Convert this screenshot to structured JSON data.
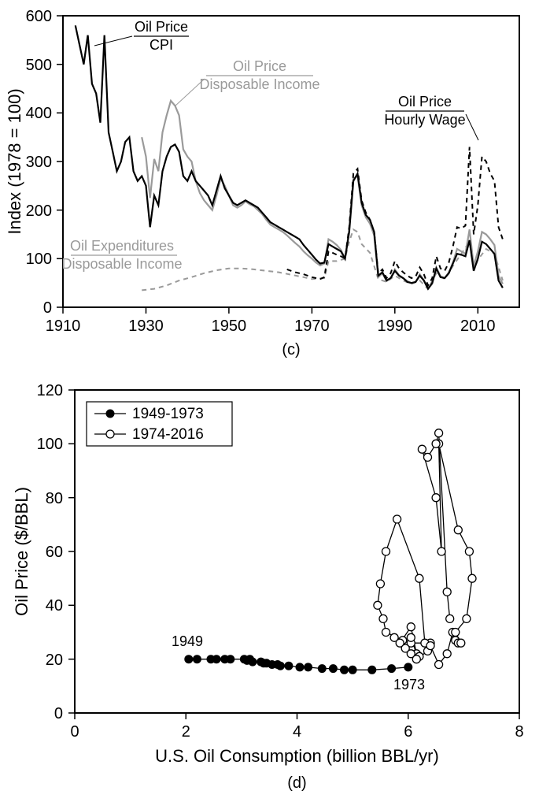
{
  "chart_c": {
    "type": "line",
    "subplot_label": "(c)",
    "ylabel": "Index (1978 = 100)",
    "xlim": [
      1910,
      2020
    ],
    "ylim": [
      0,
      600
    ],
    "xticks": [
      1910,
      1930,
      1950,
      1970,
      1990,
      2010
    ],
    "yticks": [
      0,
      100,
      200,
      300,
      400,
      500,
      600
    ],
    "label_fontsize": 20,
    "axis_title_fontsize": 22,
    "background_color": "#ffffff",
    "border_color": "#000000",
    "colors": {
      "black": "#000000",
      "gray": "#9a9a9a"
    },
    "annotations": {
      "cpi": {
        "top": "Oil Price",
        "bottom": "CPI",
        "color": "#000000"
      },
      "disp": {
        "top": "Oil Price",
        "bottom": "Disposable Income",
        "color": "#9a9a9a"
      },
      "wage": {
        "top": "Oil Price",
        "bottom": "Hourly Wage",
        "color": "#000000"
      },
      "exp": {
        "top": "Oil Expenditures",
        "bottom": "Disposable Income",
        "color": "#9a9a9a"
      }
    },
    "series": {
      "oil_cpi": {
        "color": "#000000",
        "dash": false,
        "x": [
          1913,
          1914,
          1915,
          1916,
          1917,
          1918,
          1919,
          1920,
          1921,
          1922,
          1923,
          1924,
          1925,
          1926,
          1927,
          1928,
          1929,
          1930,
          1931,
          1932,
          1933,
          1934,
          1935,
          1936,
          1937,
          1938,
          1939,
          1940,
          1941,
          1942,
          1943,
          1944,
          1945,
          1946,
          1947,
          1948,
          1949,
          1950,
          1951,
          1952,
          1953,
          1954,
          1955,
          1956,
          1957,
          1958,
          1959,
          1960,
          1961,
          1962,
          1963,
          1964,
          1965,
          1966,
          1967,
          1968,
          1969,
          1970,
          1971,
          1972,
          1973,
          1974,
          1975,
          1976,
          1977,
          1978,
          1979,
          1980,
          1981,
          1982,
          1983,
          1984,
          1985,
          1986,
          1987,
          1988,
          1989,
          1990,
          1991,
          1992,
          1993,
          1994,
          1995,
          1996,
          1997,
          1998,
          1999,
          2000,
          2001,
          2002,
          2003,
          2004,
          2005,
          2006,
          2007,
          2008,
          2009,
          2010,
          2011,
          2012,
          2013,
          2014,
          2015,
          2016
        ],
        "y": [
          580,
          540,
          500,
          560,
          460,
          440,
          380,
          560,
          360,
          320,
          280,
          300,
          340,
          350,
          280,
          260,
          270,
          250,
          165,
          230,
          210,
          280,
          310,
          330,
          335,
          320,
          270,
          260,
          280,
          260,
          250,
          240,
          230,
          210,
          240,
          270,
          245,
          230,
          215,
          210,
          215,
          220,
          215,
          210,
          205,
          195,
          185,
          175,
          170,
          165,
          160,
          155,
          150,
          145,
          140,
          128,
          118,
          108,
          98,
          90,
          92,
          130,
          125,
          120,
          115,
          100,
          155,
          260,
          275,
          215,
          190,
          180,
          155,
          65,
          72,
          55,
          60,
          75,
          65,
          60,
          52,
          50,
          52,
          65,
          55,
          38,
          50,
          80,
          62,
          60,
          70,
          90,
          110,
          108,
          105,
          138,
          75,
          100,
          135,
          130,
          120,
          110,
          55,
          40
        ]
      },
      "oil_disp": {
        "color": "#9a9a9a",
        "dash": false,
        "x": [
          1929,
          1930,
          1931,
          1932,
          1933,
          1934,
          1935,
          1936,
          1937,
          1938,
          1939,
          1940,
          1941,
          1942,
          1943,
          1944,
          1945,
          1946,
          1947,
          1948,
          1949,
          1950,
          1951,
          1952,
          1953,
          1954,
          1955,
          1956,
          1957,
          1958,
          1959,
          1960,
          1961,
          1962,
          1963,
          1964,
          1965,
          1966,
          1967,
          1968,
          1969,
          1970,
          1971,
          1972,
          1973,
          1974,
          1975,
          1976,
          1977,
          1978,
          1979,
          1980,
          1981,
          1982,
          1983,
          1984,
          1985,
          1986,
          1987,
          1988,
          1989,
          1990,
          1991,
          1992,
          1993,
          1994,
          1995,
          1996,
          1997,
          1998,
          1999,
          2000,
          2001,
          2002,
          2003,
          2004,
          2005,
          2006,
          2007,
          2008,
          2009,
          2010,
          2011,
          2012,
          2013,
          2014,
          2015,
          2016
        ],
        "y": [
          350,
          310,
          225,
          305,
          280,
          360,
          395,
          425,
          415,
          395,
          325,
          310,
          300,
          260,
          235,
          220,
          210,
          200,
          230,
          265,
          250,
          230,
          210,
          205,
          210,
          218,
          212,
          208,
          200,
          192,
          180,
          170,
          165,
          160,
          155,
          148,
          140,
          132,
          125,
          115,
          107,
          100,
          92,
          86,
          90,
          140,
          135,
          128,
          118,
          100,
          160,
          265,
          270,
          210,
          185,
          172,
          148,
          62,
          70,
          54,
          60,
          78,
          66,
          60,
          54,
          50,
          52,
          68,
          56,
          38,
          48,
          82,
          64,
          60,
          72,
          92,
          120,
          115,
          110,
          160,
          85,
          115,
          155,
          150,
          140,
          128,
          65,
          48
        ]
      },
      "oil_wage": {
        "color": "#000000",
        "dash": true,
        "x": [
          1964,
          1965,
          1966,
          1967,
          1968,
          1969,
          1970,
          1971,
          1972,
          1973,
          1974,
          1975,
          1976,
          1977,
          1978,
          1979,
          1980,
          1981,
          1982,
          1983,
          1984,
          1985,
          1986,
          1987,
          1988,
          1989,
          1990,
          1991,
          1992,
          1993,
          1994,
          1995,
          1996,
          1997,
          1998,
          1999,
          2000,
          2001,
          2002,
          2003,
          2004,
          2005,
          2006,
          2007,
          2008,
          2009,
          2010,
          2011,
          2012,
          2013,
          2014,
          2015,
          2016
        ],
        "y": [
          78,
          75,
          72,
          70,
          68,
          65,
          62,
          60,
          58,
          62,
          115,
          112,
          108,
          105,
          100,
          165,
          275,
          285,
          220,
          195,
          180,
          155,
          70,
          78,
          60,
          70,
          95,
          80,
          72,
          65,
          60,
          63,
          82,
          68,
          45,
          60,
          105,
          80,
          75,
          92,
          125,
          165,
          162,
          168,
          330,
          150,
          210,
          310,
          300,
          275,
          260,
          165,
          140
        ]
      },
      "oil_exp": {
        "color": "#9a9a9a",
        "dash": true,
        "x": [
          1929,
          1932,
          1935,
          1938,
          1941,
          1944,
          1947,
          1950,
          1953,
          1956,
          1959,
          1962,
          1965,
          1968,
          1970,
          1973,
          1974,
          1976,
          1978,
          1979,
          1980,
          1981,
          1982,
          1984,
          1986,
          1988,
          1990,
          1992,
          1994,
          1996,
          1998,
          2000,
          2002,
          2004,
          2006,
          2008,
          2009,
          2010,
          2012,
          2014,
          2016
        ],
        "y": [
          35,
          38,
          45,
          55,
          62,
          70,
          76,
          80,
          80,
          78,
          75,
          72,
          67,
          62,
          58,
          60,
          95,
          95,
          100,
          135,
          160,
          155,
          130,
          112,
          58,
          52,
          65,
          55,
          48,
          55,
          38,
          70,
          58,
          85,
          110,
          135,
          75,
          98,
          120,
          110,
          55
        ]
      }
    }
  },
  "chart_d": {
    "type": "scatter-line",
    "subplot_label": "(d)",
    "xlabel": "U.S. Oil Consumption (billion BBL/yr)",
    "ylabel": "Oil Price ($/BBL)",
    "xlim": [
      0,
      8
    ],
    "ylim": [
      0,
      120
    ],
    "xticks": [
      0,
      2,
      4,
      6,
      8
    ],
    "yticks": [
      0,
      20,
      40,
      60,
      80,
      100,
      120
    ],
    "label_fontsize": 20,
    "axis_title_fontsize": 22,
    "background_color": "#ffffff",
    "border_color": "#000000",
    "marker_radius": 5,
    "legend": {
      "s1": "1949-1973",
      "s2": "1974-2016"
    },
    "point_labels": {
      "start": "1949",
      "split": "1973"
    },
    "series1": {
      "marker": "filled",
      "color": "#000000",
      "x": [
        2.05,
        2.2,
        2.45,
        2.55,
        2.7,
        2.8,
        3.05,
        3.15,
        3.1,
        3.2,
        3.35,
        3.4,
        3.45,
        3.55,
        3.65,
        3.7,
        3.85,
        4.05,
        4.2,
        4.45,
        4.65,
        4.85,
        5.0,
        5.35,
        5.7,
        6.0
      ],
      "y": [
        20,
        20,
        20,
        20,
        20,
        20,
        20,
        20,
        19.5,
        19,
        19,
        18.5,
        18.5,
        18,
        18,
        17.5,
        17.5,
        17,
        17,
        16.5,
        16.5,
        16,
        16,
        16,
        16.5,
        17
      ]
    },
    "series2": {
      "marker": "open",
      "color": "#000000",
      "x": [
        5.95,
        5.75,
        6.05,
        6.4,
        6.3,
        6.2,
        5.8,
        5.6,
        5.5,
        5.45,
        5.55,
        5.6,
        5.9,
        6.05,
        6.15,
        6.05,
        5.85,
        5.95,
        6.05,
        6.2,
        6.15,
        6.35,
        6.4,
        6.55,
        6.7,
        6.8,
        6.85,
        6.9,
        6.95,
        6.85,
        7.05,
        7.15,
        7.1,
        6.9,
        6.55,
        6.6,
        6.5,
        6.25,
        6.35,
        6.5,
        6.55,
        6.7,
        6.75
      ],
      "y": [
        25,
        28,
        26,
        26,
        26,
        50,
        72,
        60,
        48,
        40,
        35,
        30,
        27,
        28,
        22,
        32,
        26,
        24,
        22,
        21,
        20,
        23,
        25,
        18,
        22,
        30,
        27,
        26,
        26,
        30,
        35,
        50,
        60,
        68,
        100,
        60,
        80,
        98,
        95,
        100,
        104,
        45,
        35
      ]
    }
  }
}
